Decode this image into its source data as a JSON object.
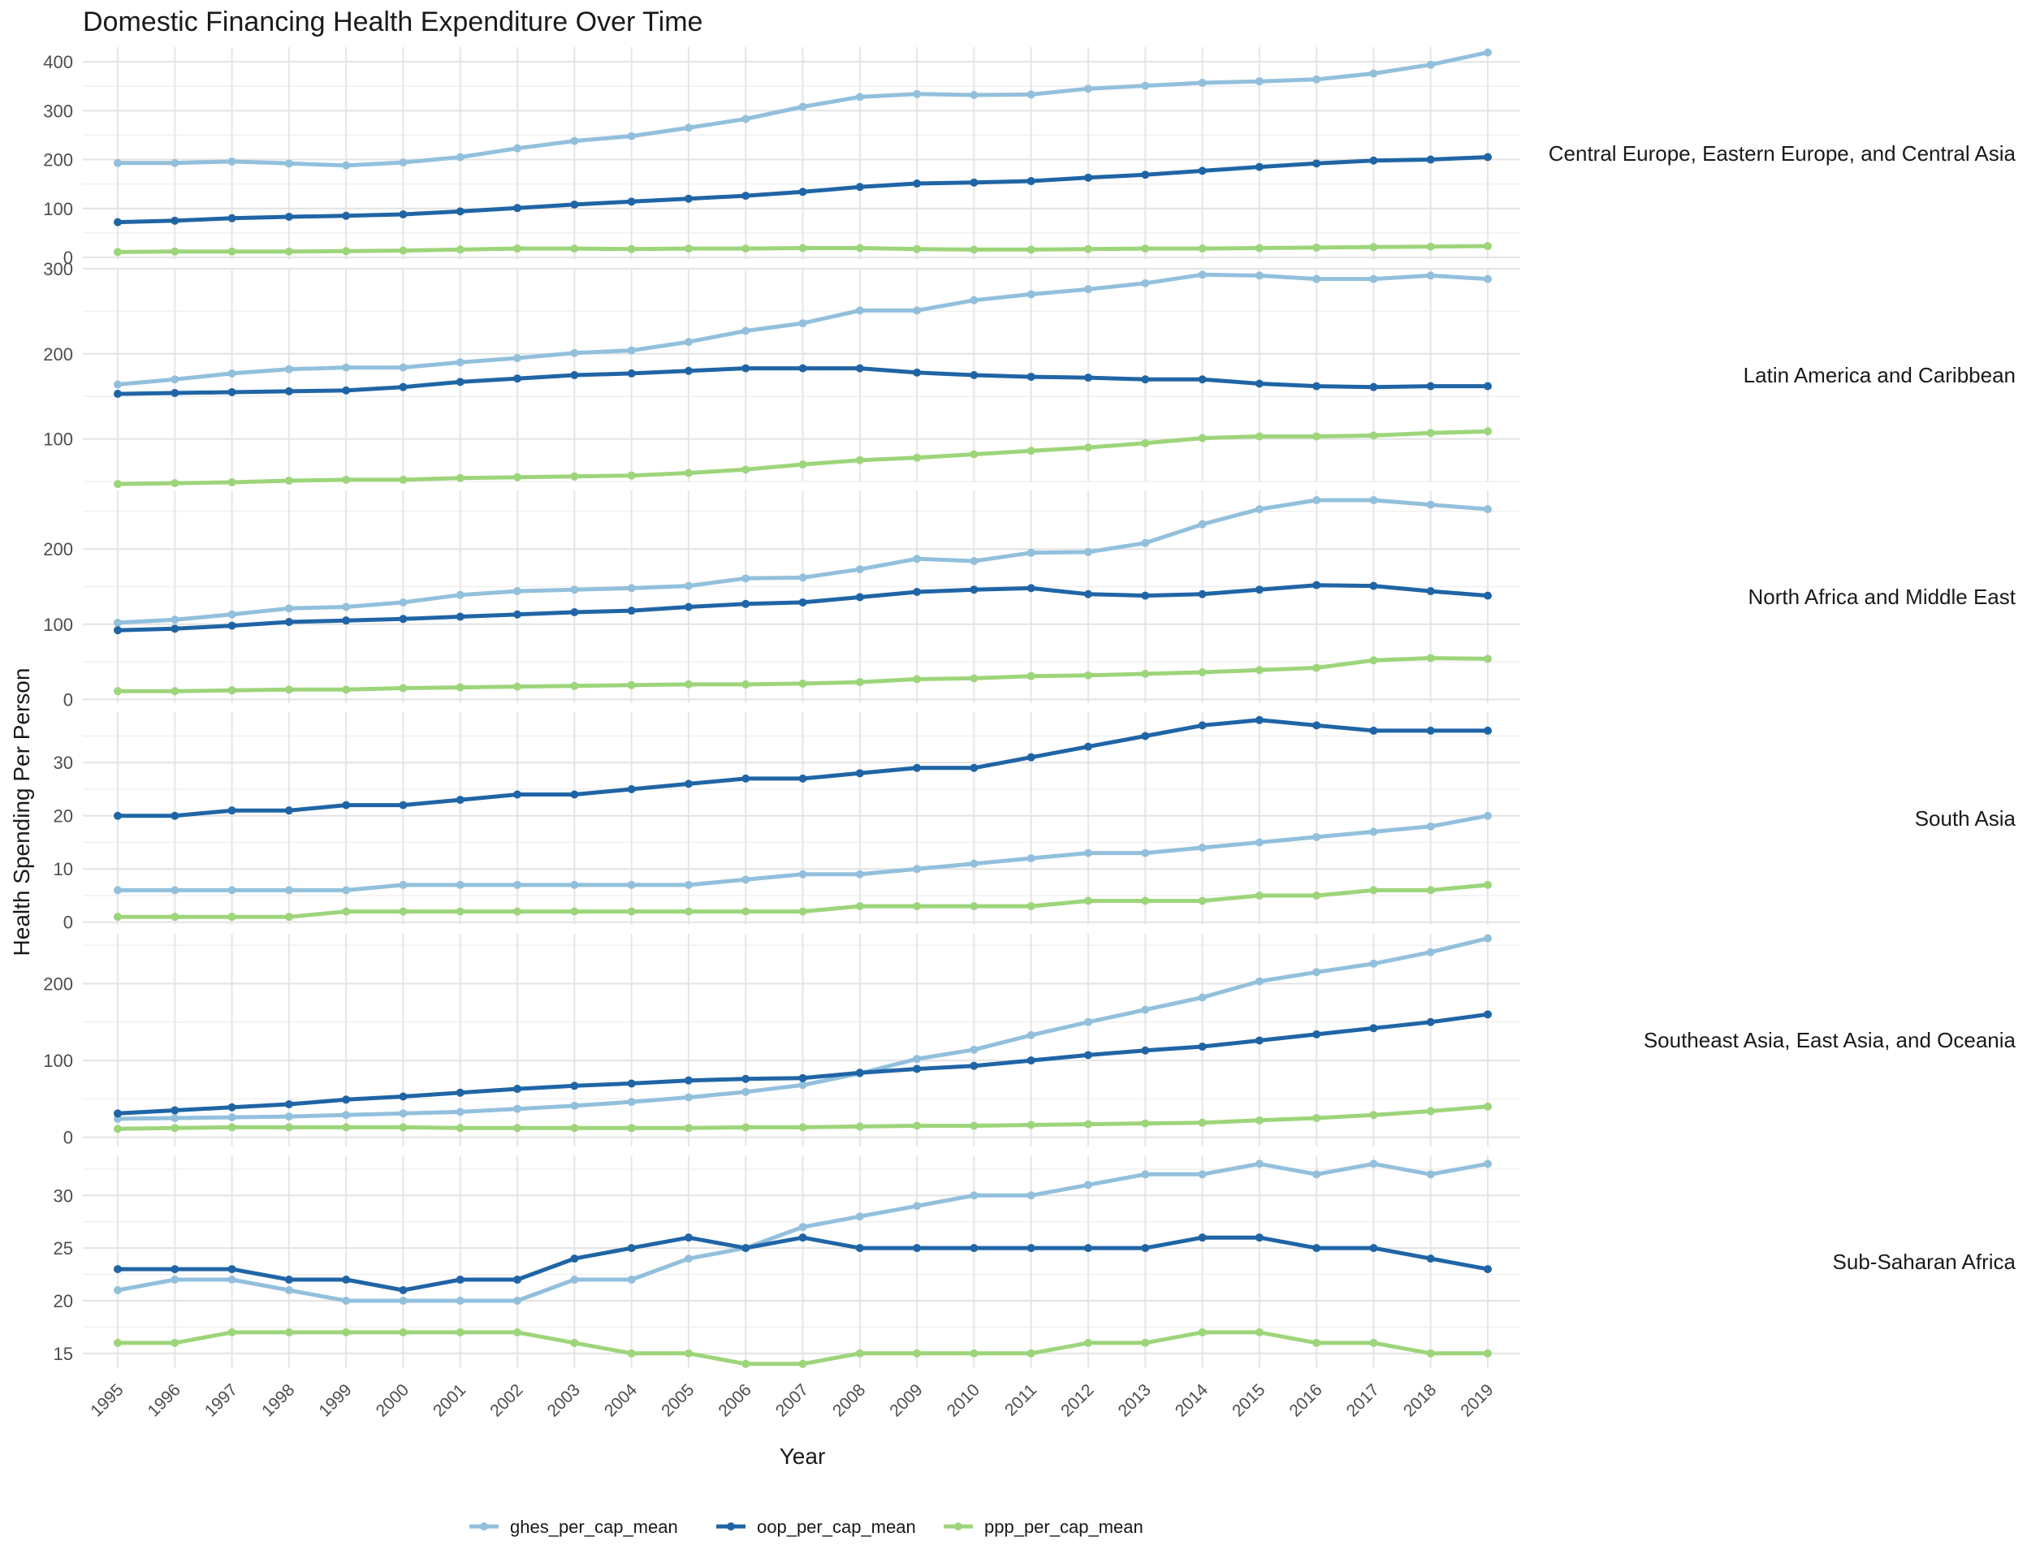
{
  "chart_data": {
    "type": "line",
    "title": "Domestic Financing Health Expenditure Over Time",
    "xlabel": "Year",
    "ylabel": "Health Spending Per Person",
    "grid": true,
    "legend_position": "bottom",
    "x": [
      1995,
      1996,
      1997,
      1998,
      1999,
      2000,
      2001,
      2002,
      2003,
      2004,
      2005,
      2006,
      2007,
      2008,
      2009,
      2010,
      2011,
      2012,
      2013,
      2014,
      2015,
      2016,
      2017,
      2018,
      2019
    ],
    "series_colors": {
      "ghes_per_cap_mean": "#92c0dc",
      "oop_per_cap_mean": "#1f65a6",
      "ppp_per_cap_mean": "#9dd57a"
    },
    "legend": [
      "ghes_per_cap_mean",
      "oop_per_cap_mean",
      "ppp_per_cap_mean"
    ],
    "panels": [
      {
        "name": "Central Europe, Eastern Europe, and Central Asia",
        "ylim": [
          -5,
          430
        ],
        "yticks": [
          0,
          100,
          200,
          300,
          400
        ],
        "series": [
          {
            "name": "ghes_per_cap_mean",
            "values": [
              193,
              193,
              196,
              192,
              188,
              194,
              205,
              223,
              238,
              248,
              265,
              283,
              308,
              328,
              334,
              332,
              333,
              345,
              351,
              357,
              360,
              364,
              376,
              394,
              419
            ]
          },
          {
            "name": "oop_per_cap_mean",
            "values": [
              72,
              75,
              80,
              83,
              85,
              88,
              94,
              101,
              108,
              114,
              120,
              126,
              134,
              144,
              151,
              153,
              156,
              163,
              169,
              177,
              185,
              192,
              198,
              200,
              205
            ]
          },
          {
            "name": "ppp_per_cap_mean",
            "values": [
              11,
              12,
              12,
              12,
              13,
              14,
              16,
              18,
              18,
              17,
              18,
              18,
              19,
              19,
              17,
              16,
              16,
              17,
              18,
              18,
              19,
              20,
              21,
              22,
              23
            ]
          }
        ]
      },
      {
        "name": "Latin America and Caribbean",
        "ylim": [
          50,
          300
        ],
        "yticks": [
          100,
          200,
          300
        ],
        "series": [
          {
            "name": "ghes_per_cap_mean",
            "values": [
              164,
              170,
              177,
              182,
              184,
              184,
              190,
              195,
              201,
              204,
              214,
              227,
              236,
              251,
              251,
              263,
              270,
              276,
              283,
              293,
              292,
              288,
              288,
              292,
              288
            ]
          },
          {
            "name": "oop_per_cap_mean",
            "values": [
              153,
              154,
              155,
              156,
              157,
              161,
              167,
              171,
              175,
              177,
              180,
              183,
              183,
              183,
              178,
              175,
              173,
              172,
              170,
              170,
              165,
              162,
              161,
              162,
              162
            ]
          },
          {
            "name": "ppp_per_cap_mean",
            "values": [
              47,
              48,
              49,
              51,
              52,
              52,
              54,
              55,
              56,
              57,
              60,
              64,
              70,
              75,
              78,
              82,
              86,
              90,
              95,
              101,
              103,
              103,
              104,
              107,
              109
            ]
          }
        ]
      },
      {
        "name": "North Africa and Middle East",
        "ylim": [
          -5,
          278
        ],
        "yticks": [
          0,
          100,
          200
        ],
        "series": [
          {
            "name": "ghes_per_cap_mean",
            "values": [
              102,
              106,
              113,
              121,
              123,
              129,
              139,
              144,
              146,
              148,
              151,
              161,
              162,
              173,
              187,
              184,
              195,
              196,
              208,
              233,
              253,
              265,
              265,
              259,
              253
            ]
          },
          {
            "name": "oop_per_cap_mean",
            "values": [
              92,
              94,
              98,
              103,
              105,
              107,
              110,
              113,
              116,
              118,
              123,
              127,
              129,
              136,
              143,
              146,
              148,
              140,
              138,
              140,
              146,
              152,
              151,
              144,
              138
            ]
          },
          {
            "name": "ppp_per_cap_mean",
            "values": [
              11,
              11,
              12,
              13,
              13,
              15,
              16,
              17,
              18,
              19,
              20,
              20,
              21,
              23,
              27,
              28,
              31,
              32,
              34,
              36,
              39,
              42,
              52,
              55,
              54
            ]
          }
        ]
      },
      {
        "name": "South Asia",
        "ylim": [
          -0.5,
          39.5
        ],
        "yticks": [
          0,
          10,
          20,
          30
        ],
        "series": [
          {
            "name": "ghes_per_cap_mean",
            "values": [
              6,
              6,
              6,
              6,
              6,
              7,
              7,
              7,
              7,
              7,
              7,
              8,
              9,
              9,
              10,
              11,
              12,
              13,
              13,
              14,
              15,
              16,
              17,
              18,
              20
            ]
          },
          {
            "name": "oop_per_cap_mean",
            "values": [
              20,
              20,
              21,
              21,
              22,
              22,
              23,
              24,
              24,
              25,
              26,
              27,
              27,
              28,
              29,
              29,
              31,
              33,
              35,
              37,
              38,
              37,
              36,
              36,
              36
            ]
          },
          {
            "name": "ppp_per_cap_mean",
            "values": [
              1,
              1,
              1,
              1,
              2,
              2,
              2,
              2,
              2,
              2,
              2,
              2,
              2,
              3,
              3,
              3,
              3,
              4,
              4,
              4,
              5,
              5,
              6,
              6,
              7
            ]
          }
        ]
      },
      {
        "name": "Southeast Asia, East Asia, and Oceania",
        "ylim": [
          -12,
          265
        ],
        "yticks": [
          0,
          100,
          200
        ],
        "series": [
          {
            "name": "ghes_per_cap_mean",
            "values": [
              24,
              25,
              26,
              27,
              29,
              31,
              33,
              37,
              41,
              46,
              52,
              59,
              68,
              83,
              102,
              114,
              133,
              150,
              166,
              182,
              203,
              215,
              226,
              241,
              259
            ]
          },
          {
            "name": "oop_per_cap_mean",
            "values": [
              31,
              35,
              39,
              43,
              49,
              53,
              58,
              63,
              67,
              70,
              74,
              76,
              77,
              84,
              89,
              93,
              100,
              107,
              113,
              118,
              126,
              134,
              142,
              150,
              160
            ]
          },
          {
            "name": "ppp_per_cap_mean",
            "values": [
              11,
              12,
              13,
              13,
              13,
              13,
              12,
              12,
              12,
              12,
              12,
              13,
              13,
              14,
              15,
              15,
              16,
              17,
              18,
              19,
              22,
              25,
              29,
              34,
              40
            ]
          }
        ]
      },
      {
        "name": "Sub-Saharan Africa",
        "ylim": [
          13.6,
          33.8
        ],
        "yticks": [
          15,
          20,
          25,
          30
        ],
        "series": [
          {
            "name": "ghes_per_cap_mean",
            "values": [
              21,
              22,
              22,
              21,
              20,
              20,
              20,
              20,
              22,
              22,
              24,
              25,
              27,
              28,
              29,
              30,
              30,
              31,
              32,
              32,
              33,
              32,
              33,
              32,
              33
            ]
          },
          {
            "name": "oop_per_cap_mean",
            "values": [
              23,
              23,
              23,
              22,
              22,
              21,
              22,
              22,
              24,
              25,
              26,
              25,
              26,
              25,
              25,
              25,
              25,
              25,
              25,
              26,
              26,
              25,
              25,
              24,
              23
            ]
          },
          {
            "name": "ppp_per_cap_mean",
            "values": [
              16,
              16,
              17,
              17,
              17,
              17,
              17,
              17,
              16,
              15,
              15,
              14,
              14,
              15,
              15,
              15,
              15,
              16,
              16,
              17,
              17,
              16,
              16,
              15,
              15
            ]
          }
        ]
      }
    ]
  }
}
